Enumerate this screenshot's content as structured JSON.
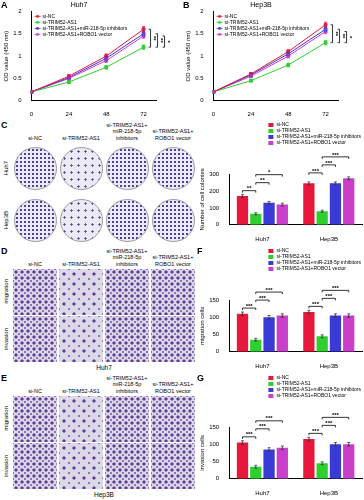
{
  "chart_data": [
    {
      "panel": "A",
      "type": "line",
      "title": "Huh7",
      "x": [
        0,
        24,
        48,
        72
      ],
      "xlim": [
        0,
        80
      ],
      "xticks": [
        0,
        24,
        48,
        72
      ],
      "ylim": [
        0,
        2
      ],
      "yticks": [
        0,
        0.5,
        1,
        1.5,
        2
      ],
      "ylabel": "OD value (450 nm)",
      "grid": false,
      "legend": "upper left",
      "series": [
        {
          "name": "si-NC",
          "color": "#e8183c",
          "marker": "square",
          "values": [
            0.2,
            0.55,
            1.0,
            1.6
          ],
          "errors": [
            0.02,
            0.03,
            0.05,
            0.06
          ]
        },
        {
          "name": "si-TRIM52-AS1",
          "color": "#2fcf2f",
          "marker": "square",
          "values": [
            0.2,
            0.42,
            0.75,
            1.2
          ],
          "errors": [
            0.02,
            0.03,
            0.04,
            0.05
          ]
        },
        {
          "name": "si-TRIM52-AS1+miR-218-5p inhibitors",
          "color": "#3a3ad6",
          "marker": "square",
          "values": [
            0.2,
            0.52,
            0.95,
            1.5
          ],
          "errors": [
            0.02,
            0.03,
            0.04,
            0.05
          ]
        },
        {
          "name": "si-TRIM52-AS1+ROBO1 vector",
          "color": "#c93fc9",
          "marker": "square",
          "values": [
            0.2,
            0.5,
            0.9,
            1.45
          ],
          "errors": [
            0.02,
            0.03,
            0.04,
            0.05
          ]
        }
      ],
      "significance": [
        {
          "from": 0,
          "to": 1,
          "label": "**"
        },
        {
          "from": 1,
          "to": 2,
          "label": "**"
        },
        {
          "from": 1,
          "to": 3,
          "label": "*"
        }
      ]
    },
    {
      "panel": "B",
      "type": "line",
      "title": "Hep3B",
      "x": [
        0,
        24,
        48,
        72
      ],
      "xlim": [
        0,
        80
      ],
      "xticks": [
        0,
        24,
        48,
        72
      ],
      "ylim": [
        0,
        2
      ],
      "yticks": [
        0,
        0.5,
        1,
        1.5,
        2
      ],
      "ylabel": "OD value (450 nm)",
      "grid": false,
      "legend": "upper left",
      "series": [
        {
          "name": "si-NC",
          "color": "#e8183c",
          "marker": "square",
          "values": [
            0.2,
            0.6,
            1.1,
            1.7
          ],
          "errors": [
            0.02,
            0.03,
            0.05,
            0.06
          ]
        },
        {
          "name": "si-TRIM52-AS1",
          "color": "#2fcf2f",
          "marker": "square",
          "values": [
            0.2,
            0.45,
            0.8,
            1.3
          ],
          "errors": [
            0.02,
            0.03,
            0.04,
            0.05
          ]
        },
        {
          "name": "si-TRIM52-AS1+miR-218-5p inhibitors",
          "color": "#3a3ad6",
          "marker": "square",
          "values": [
            0.2,
            0.58,
            1.05,
            1.6
          ],
          "errors": [
            0.02,
            0.03,
            0.04,
            0.05
          ]
        },
        {
          "name": "si-TRIM52-AS1+ROBO1 vector",
          "color": "#c93fc9",
          "marker": "square",
          "values": [
            0.2,
            0.55,
            1.0,
            1.55
          ],
          "errors": [
            0.02,
            0.03,
            0.04,
            0.05
          ]
        }
      ],
      "significance": [
        {
          "from": 0,
          "to": 1,
          "label": "**"
        },
        {
          "from": 1,
          "to": 2,
          "label": "**"
        },
        {
          "from": 1,
          "to": 3,
          "label": "*"
        }
      ]
    },
    {
      "panel": "C",
      "type": "bar",
      "categories": [
        "Huh7",
        "Hep3B"
      ],
      "ylim": [
        0,
        300
      ],
      "yticks": [
        0,
        100,
        200,
        300
      ],
      "ylabel": "Number of cell colonies",
      "grid": false,
      "legend": "upper right",
      "series": [
        {
          "name": "si-NC",
          "color": "#e8183c",
          "values": [
            170,
            245
          ],
          "errors": [
            8,
            8
          ]
        },
        {
          "name": "si-TRIM52-AS1",
          "color": "#2fcf2f",
          "values": [
            65,
            80
          ],
          "errors": [
            6,
            6
          ]
        },
        {
          "name": "si-TRIM52-AS1+miR-218-5p inhibitors",
          "color": "#3a3ad6",
          "values": [
            130,
            245
          ],
          "errors": [
            8,
            8
          ]
        },
        {
          "name": "si-TRIM52-AS1+ROBO1 vector",
          "color": "#c93fc9",
          "values": [
            120,
            275
          ],
          "errors": [
            8,
            8
          ]
        }
      ],
      "significance": [
        {
          "category": 0,
          "from": 0,
          "to": 1,
          "label": "**"
        },
        {
          "category": 0,
          "from": 1,
          "to": 2,
          "label": "**"
        },
        {
          "category": 0,
          "from": 1,
          "to": 3,
          "label": "*"
        },
        {
          "category": 1,
          "from": 0,
          "to": 1,
          "label": "***"
        },
        {
          "category": 1,
          "from": 1,
          "to": 2,
          "label": "***"
        },
        {
          "category": 1,
          "from": 1,
          "to": 3,
          "label": "***"
        }
      ]
    },
    {
      "panel": "F",
      "type": "bar",
      "categories": [
        "Huh7",
        "Hep3B"
      ],
      "ylim": [
        0,
        150
      ],
      "yticks": [
        0,
        50,
        100,
        150
      ],
      "ylabel": "migration cells",
      "grid": false,
      "legend": "upper right",
      "series": [
        {
          "name": "si-NC",
          "color": "#e8183c",
          "values": [
            110,
            115
          ],
          "errors": [
            5,
            5
          ]
        },
        {
          "name": "si-TRIM52-AS1",
          "color": "#2fcf2f",
          "values": [
            35,
            45
          ],
          "errors": [
            4,
            4
          ]
        },
        {
          "name": "si-TRIM52-AS1+miR-218-5p inhibitors",
          "color": "#3a3ad6",
          "values": [
            100,
            105
          ],
          "errors": [
            5,
            5
          ]
        },
        {
          "name": "si-TRIM52-AS1+ROBO1 vector",
          "color": "#c93fc9",
          "values": [
            105,
            105
          ],
          "errors": [
            5,
            5
          ]
        }
      ],
      "significance": [
        {
          "category": 0,
          "from": 0,
          "to": 1,
          "label": "***"
        },
        {
          "category": 0,
          "from": 1,
          "to": 2,
          "label": "***"
        },
        {
          "category": 0,
          "from": 1,
          "to": 3,
          "label": "***"
        },
        {
          "category": 1,
          "from": 0,
          "to": 1,
          "label": "***"
        },
        {
          "category": 1,
          "from": 1,
          "to": 2,
          "label": "***"
        },
        {
          "category": 1,
          "from": 1,
          "to": 3,
          "label": "***"
        }
      ]
    },
    {
      "panel": "G",
      "type": "bar",
      "categories": [
        "Huh7",
        "Hep3B"
      ],
      "ylim": [
        0,
        150
      ],
      "yticks": [
        0,
        50,
        100,
        150
      ],
      "ylabel": "invasion cells",
      "grid": false,
      "legend": "upper right",
      "series": [
        {
          "name": "si-NC",
          "color": "#e8183c",
          "values": [
            105,
            115
          ],
          "errors": [
            5,
            5
          ]
        },
        {
          "name": "si-TRIM52-AS1",
          "color": "#2fcf2f",
          "values": [
            35,
            45
          ],
          "errors": [
            4,
            4
          ]
        },
        {
          "name": "si-TRIM52-AS1+miR-218-5p inhibitors",
          "color": "#3a3ad6",
          "values": [
            85,
            100
          ],
          "errors": [
            5,
            5
          ]
        },
        {
          "name": "si-TRIM52-AS1+ROBO1 vector",
          "color": "#c93fc9",
          "values": [
            90,
            100
          ],
          "errors": [
            5,
            5
          ]
        }
      ],
      "significance": [
        {
          "category": 0,
          "from": 0,
          "to": 1,
          "label": "***"
        },
        {
          "category": 0,
          "from": 1,
          "to": 2,
          "label": "***"
        },
        {
          "category": 0,
          "from": 1,
          "to": 3,
          "label": "***"
        },
        {
          "category": 1,
          "from": 0,
          "to": 1,
          "label": "***"
        },
        {
          "category": 1,
          "from": 1,
          "to": 2,
          "label": "***"
        },
        {
          "category": 1,
          "from": 1,
          "to": 3,
          "label": "***"
        }
      ]
    }
  ],
  "images": [
    {
      "panel": "C",
      "type": "plate",
      "columns": [
        "si-NC",
        "si-TRIM52-AS1",
        "si-TRIM52-AS1+ miR-218-5p inhibitors",
        "si-TRIM52-AS1+ ROBO1 vector"
      ],
      "rows": [
        "Huh7",
        "Hep3B"
      ]
    },
    {
      "panel": "D",
      "type": "micrograph",
      "columns": [
        "si-NC",
        "si-TRIM52-AS1",
        "si-TRIM52-AS1+ miR-218-5p inhibitors",
        "si-TRIM52-AS1+ ROBO1 vector"
      ],
      "rows": [
        "migration",
        "invasion"
      ],
      "caption": "Huh7"
    },
    {
      "panel": "E",
      "type": "micrograph",
      "columns": [
        "si-NC",
        "si-TRIM52-AS1",
        "si-TRIM52-AS1+ miR-218-5p inhibitors",
        "si-TRIM52-AS1+ ROBO1 vector"
      ],
      "rows": [
        "migration",
        "invasion"
      ],
      "caption": "Hep3B"
    }
  ]
}
